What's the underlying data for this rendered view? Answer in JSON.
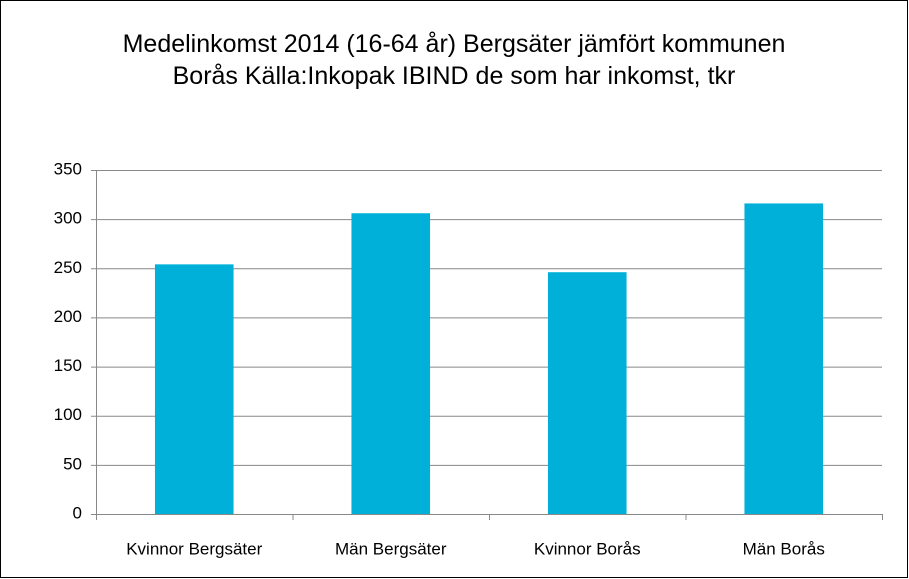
{
  "chart_data": {
    "type": "bar",
    "title": "Medelinkomst 2014 (16-64 år) Bergsäter jämfört kommunen Borås Källa:Inkopak IBIND de som har inkomst, tkr",
    "categories": [
      "Kvinnor Bergsäter",
      "Män Bergsäter",
      "Kvinnor Borås",
      "Män Borås"
    ],
    "values": [
      254,
      306,
      246,
      316
    ],
    "color": "#00b0d8",
    "ylim": [
      0,
      350
    ],
    "yticks": [
      0,
      50,
      100,
      150,
      200,
      250,
      300,
      350
    ],
    "grid": true
  }
}
